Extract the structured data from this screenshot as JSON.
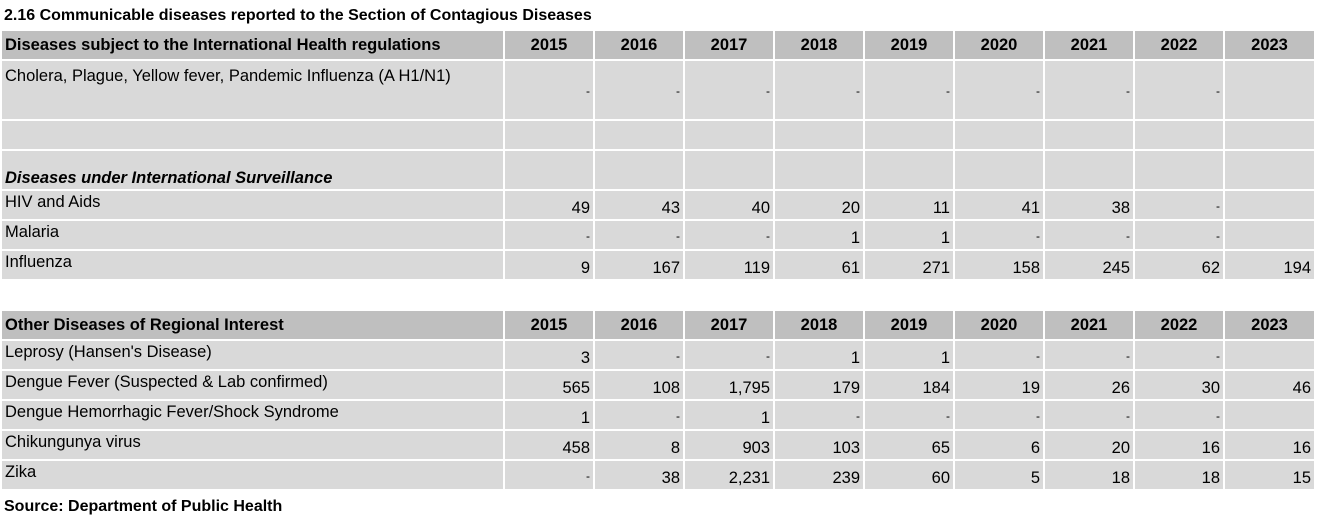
{
  "title": "2.16  Communicable diseases reported to the Section of Contagious Diseases",
  "years": [
    "2015",
    "2016",
    "2017",
    "2018",
    "2019",
    "2020",
    "2021",
    "2022",
    "2023"
  ],
  "table1": {
    "header": "Diseases subject to the International Health regulations",
    "rows": [
      {
        "label": "Cholera, Plague, Yellow fever, Pandemic Influenza (A H1/N1)",
        "values": [
          "-",
          "-",
          "-",
          "-",
          "-",
          "-",
          "-",
          "-",
          ""
        ]
      }
    ],
    "section": "Diseases under International Surveillance",
    "surveillance_rows": [
      {
        "label": "HIV and Aids",
        "values": [
          "49",
          "43",
          "40",
          "20",
          "11",
          "41",
          "38",
          "-",
          ""
        ]
      },
      {
        "label": "Malaria",
        "values": [
          "-",
          "-",
          "-",
          "1",
          "1",
          "-",
          "-",
          "-",
          ""
        ]
      },
      {
        "label": "Influenza",
        "values": [
          "9",
          "167",
          "119",
          "61",
          "271",
          "158",
          "245",
          "62",
          "194"
        ]
      }
    ]
  },
  "table2": {
    "header": "Other Diseases of Regional Interest",
    "rows": [
      {
        "label": "Leprosy (Hansen's Disease)",
        "values": [
          "3",
          "-",
          "-",
          "1",
          "1",
          "-",
          "-",
          "-",
          ""
        ]
      },
      {
        "label": "Dengue Fever (Suspected & Lab confirmed)",
        "values": [
          "565",
          "108",
          "1,795",
          "179",
          "184",
          "19",
          "26",
          "30",
          "46"
        ]
      },
      {
        "label": "Dengue Hemorrhagic Fever/Shock Syndrome",
        "values": [
          "1",
          "-",
          "1",
          "-",
          "-",
          "-",
          "-",
          "-",
          ""
        ]
      },
      {
        "label": "Chikungunya virus",
        "values": [
          "458",
          "8",
          "903",
          "103",
          "65",
          "6",
          "20",
          "16",
          "16"
        ]
      },
      {
        "label": "Zika",
        "values": [
          "-",
          "38",
          "2,231",
          "239",
          "60",
          "5",
          "18",
          "18",
          "15"
        ]
      }
    ]
  },
  "source": "Source: Department of Public Health"
}
